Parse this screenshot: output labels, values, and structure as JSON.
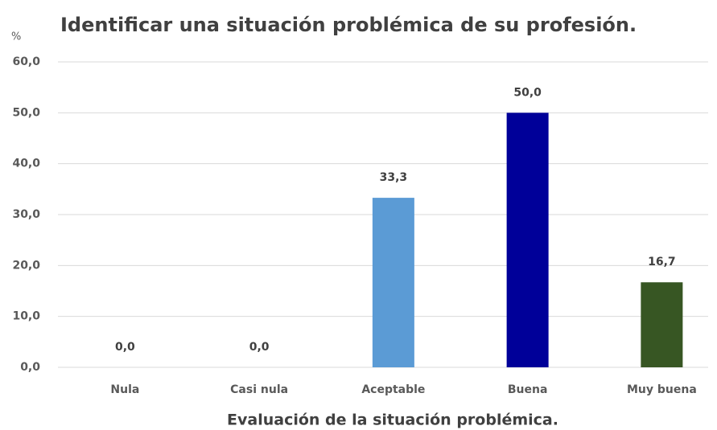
{
  "chart_data": {
    "type": "bar",
    "title": "Identificar una situación problémica de su profesión.",
    "y_axis_label": "%",
    "x_axis_label": "Evaluación de la situación problémica.",
    "categories": [
      "Nula",
      "Casi nula",
      "Aceptable",
      "Buena",
      "Muy buena"
    ],
    "values": [
      0,
      0,
      33.3,
      50,
      16.7
    ],
    "value_labels": [
      "0,0",
      "0,0",
      "33,3",
      "50,0",
      "16,7"
    ],
    "colors": [
      "#5b9bd5",
      "#5b9bd5",
      "#5b9bd5",
      "#000099",
      "#375623"
    ],
    "ylim": [
      0,
      60
    ],
    "yticks": [
      {
        "value": 0,
        "label": "0,0"
      },
      {
        "value": 10,
        "label": "10,0"
      },
      {
        "value": 20,
        "label": "20,0"
      },
      {
        "value": 30,
        "label": "30,0"
      },
      {
        "value": 40,
        "label": "40,0"
      },
      {
        "value": 50,
        "label": "50,0"
      },
      {
        "value": 60,
        "label": "60,0"
      }
    ],
    "grid": true
  }
}
